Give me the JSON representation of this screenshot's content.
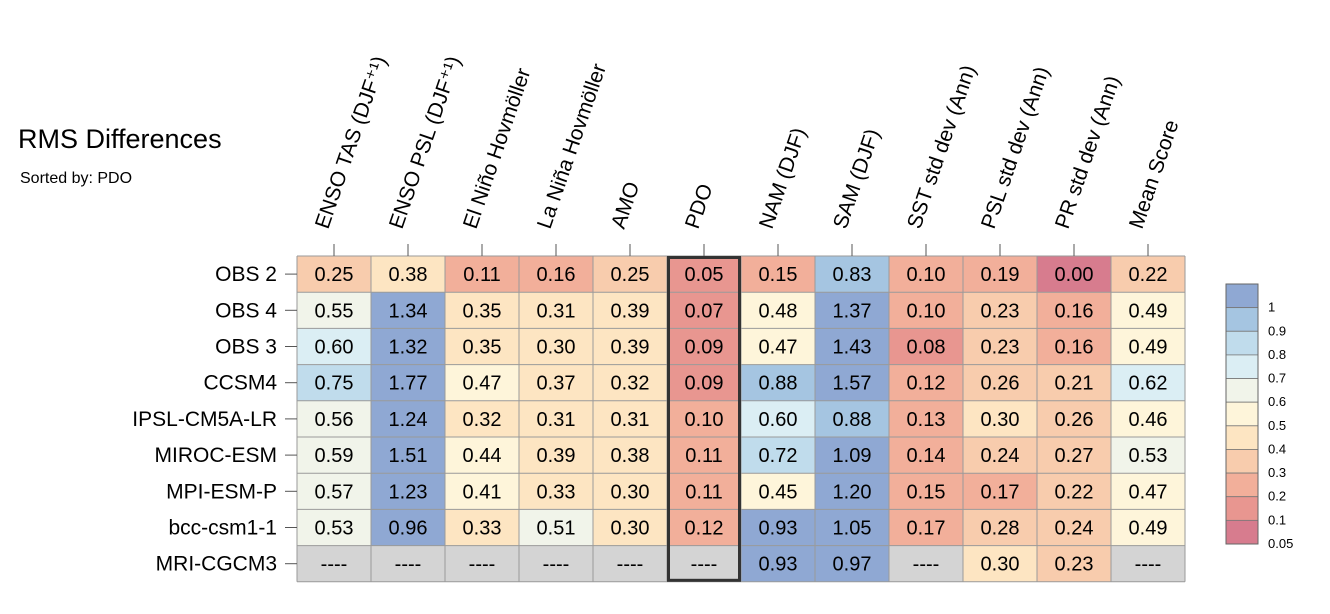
{
  "title": "RMS Differences",
  "sorted_by": "Sorted by: PDO",
  "chart_data": {
    "type": "heatmap",
    "title": "RMS Differences",
    "subtitle": "Sorted by: PDO",
    "columns": [
      "ENSO TAS (DJF⁺¹)",
      "ENSO PSL (DJF⁺¹)",
      "El Niño Hovmöller",
      "La Niña Hovmöller",
      "AMO",
      "PDO",
      "NAM (DJF)",
      "SAM (DJF)",
      "SST std dev (Ann)",
      "PSL std dev (Ann)",
      "PR std dev (Ann)",
      "Mean Score"
    ],
    "rows": [
      "OBS 2",
      "OBS 4",
      "OBS 3",
      "CCSM4",
      "IPSL-CM5A-LR",
      "MIROC-ESM",
      "MPI-ESM-P",
      "bcc-csm1-1",
      "MRI-CGCM3"
    ],
    "values": [
      [
        "0.25",
        "0.38",
        "0.11",
        "0.16",
        "0.25",
        "0.05",
        "0.15",
        "0.83",
        "0.10",
        "0.19",
        "0.00",
        "0.22"
      ],
      [
        "0.55",
        "1.34",
        "0.35",
        "0.31",
        "0.39",
        "0.07",
        "0.48",
        "1.37",
        "0.10",
        "0.23",
        "0.16",
        "0.49"
      ],
      [
        "0.60",
        "1.32",
        "0.35",
        "0.30",
        "0.39",
        "0.09",
        "0.47",
        "1.43",
        "0.08",
        "0.23",
        "0.16",
        "0.49"
      ],
      [
        "0.75",
        "1.77",
        "0.47",
        "0.37",
        "0.32",
        "0.09",
        "0.88",
        "1.57",
        "0.12",
        "0.26",
        "0.21",
        "0.62"
      ],
      [
        "0.56",
        "1.24",
        "0.32",
        "0.31",
        "0.31",
        "0.10",
        "0.60",
        "0.88",
        "0.13",
        "0.30",
        "0.26",
        "0.46"
      ],
      [
        "0.59",
        "1.51",
        "0.44",
        "0.39",
        "0.38",
        "0.11",
        "0.72",
        "1.09",
        "0.14",
        "0.24",
        "0.27",
        "0.53"
      ],
      [
        "0.57",
        "1.23",
        "0.41",
        "0.33",
        "0.30",
        "0.11",
        "0.45",
        "1.20",
        "0.15",
        "0.17",
        "0.22",
        "0.47"
      ],
      [
        "0.53",
        "0.96",
        "0.33",
        "0.51",
        "0.30",
        "0.12",
        "0.93",
        "1.05",
        "0.17",
        "0.28",
        "0.24",
        "0.49"
      ],
      [
        "----",
        "----",
        "----",
        "----",
        "----",
        "----",
        "0.93",
        "0.97",
        "----",
        "0.30",
        "0.23",
        "----"
      ]
    ],
    "highlighted_column": "PDO",
    "missing_label": "----",
    "missing_color": "#d4d4d4",
    "colorbar": {
      "labels": [
        "1",
        "0.9",
        "0.8",
        "0.7",
        "0.6",
        "0.5",
        "0.4",
        "0.3",
        "0.2",
        "0.1",
        "0.05"
      ],
      "bounds": [
        0,
        0.05,
        0.1,
        0.2,
        0.3,
        0.4,
        0.5,
        0.6,
        0.7,
        0.8,
        0.9,
        1
      ],
      "colors": [
        "#d77c8e",
        "#e89690",
        "#f2af9a",
        "#f8ccad",
        "#fde5c2",
        "#fef5da",
        "#f1f4ea",
        "#dbeef4",
        "#c0dcec",
        "#a5c5e1",
        "#8fa8d3"
      ]
    }
  }
}
